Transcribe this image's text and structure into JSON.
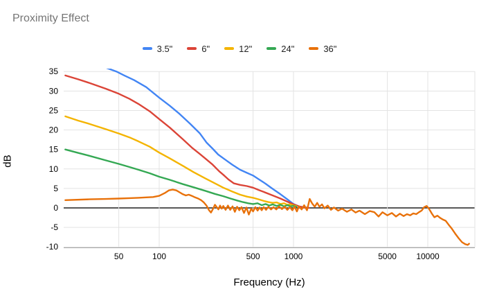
{
  "title": "Proximity Effect",
  "axes": {
    "y_title": "dB",
    "x_title": "Frequency (Hz)",
    "y_ticks": [
      35,
      30,
      25,
      20,
      15,
      10,
      5,
      0,
      -5,
      -10
    ],
    "x_ticks": [
      50,
      100,
      500,
      1000,
      5000,
      10000
    ]
  },
  "styles": {
    "title_color": "#757575",
    "gridline_color": "#e3e3e3",
    "zero_line_color": "#212121",
    "baseline_color": "#9e9e9e",
    "tick_label_color": "#000000"
  },
  "chart_data": {
    "type": "line",
    "title": "Proximity Effect",
    "xlabel": "Frequency (Hz)",
    "ylabel": "dB",
    "x_scale": "log",
    "xlim": [
      19.4,
      22500
    ],
    "ylim": [
      -10,
      35
    ],
    "grid": true,
    "legend_position": "top",
    "series": [
      {
        "name": "3.5\"",
        "color": "#4285F4",
        "points": [
          [
            20,
            40
          ],
          [
            30,
            37.6
          ],
          [
            40,
            36
          ],
          [
            48,
            35
          ],
          [
            55,
            34
          ],
          [
            65,
            32.8
          ],
          [
            80,
            31
          ],
          [
            100,
            28.3
          ],
          [
            120,
            26.2
          ],
          [
            140,
            24.3
          ],
          [
            170,
            21.6
          ],
          [
            200,
            19.2
          ],
          [
            225,
            16.8
          ],
          [
            250,
            15.2
          ],
          [
            275,
            13.7
          ],
          [
            310,
            12.4
          ],
          [
            350,
            11.1
          ],
          [
            400,
            9.8
          ],
          [
            450,
            9.0
          ],
          [
            500,
            8.3
          ],
          [
            560,
            7.2
          ],
          [
            620,
            6.2
          ],
          [
            700,
            4.9
          ],
          [
            800,
            3.5
          ],
          [
            900,
            2.2
          ],
          [
            1000,
            1.0
          ],
          [
            1100,
            0.4
          ],
          [
            1200,
            0.15
          ],
          [
            1300,
            0.05
          ]
        ]
      },
      {
        "name": "6\"",
        "color": "#DB4437",
        "points": [
          [
            20,
            34
          ],
          [
            25,
            33
          ],
          [
            30,
            32.1
          ],
          [
            40,
            30.6
          ],
          [
            50,
            29.3
          ],
          [
            60,
            28
          ],
          [
            70,
            26.7
          ],
          [
            85,
            24.8
          ],
          [
            100,
            22.8
          ],
          [
            120,
            20.6
          ],
          [
            148,
            17.8
          ],
          [
            175,
            15.5
          ],
          [
            200,
            13.9
          ],
          [
            222,
            12.6
          ],
          [
            250,
            11.1
          ],
          [
            280,
            9.4
          ],
          [
            300,
            8.5
          ],
          [
            328,
            7.3
          ],
          [
            360,
            6.3
          ],
          [
            400,
            5.9
          ],
          [
            450,
            5.6
          ],
          [
            500,
            5.2
          ],
          [
            550,
            4.6
          ],
          [
            600,
            4.1
          ],
          [
            700,
            3.2
          ],
          [
            800,
            2.4
          ],
          [
            900,
            1.6
          ],
          [
            1000,
            0.9
          ],
          [
            1100,
            0.4
          ],
          [
            1200,
            0.1
          ],
          [
            1300,
            0
          ]
        ]
      },
      {
        "name": "12\"",
        "color": "#F4B400",
        "points": [
          [
            20,
            23.5
          ],
          [
            25,
            22.4
          ],
          [
            30,
            21.6
          ],
          [
            40,
            20.2
          ],
          [
            50,
            19.1
          ],
          [
            60,
            18.1
          ],
          [
            70,
            17.1
          ],
          [
            85,
            15.7
          ],
          [
            100,
            14.2
          ],
          [
            120,
            12.7
          ],
          [
            150,
            10.8
          ],
          [
            180,
            9.2
          ],
          [
            220,
            7.6
          ],
          [
            260,
            6.3
          ],
          [
            300,
            5.2
          ],
          [
            350,
            4.2
          ],
          [
            400,
            3.4
          ],
          [
            450,
            2.9
          ],
          [
            500,
            2.6
          ],
          [
            550,
            2.2
          ],
          [
            600,
            1.8
          ],
          [
            650,
            1.5
          ],
          [
            700,
            1.3
          ],
          [
            750,
            1.4
          ],
          [
            800,
            1.0
          ],
          [
            850,
            1.2
          ],
          [
            900,
            0.8
          ],
          [
            950,
            0.9
          ],
          [
            1000,
            0.6
          ],
          [
            1050,
            0.5
          ]
        ]
      },
      {
        "name": "24\"",
        "color": "#34A853",
        "points": [
          [
            20,
            15
          ],
          [
            25,
            14.1
          ],
          [
            30,
            13.4
          ],
          [
            40,
            12.2
          ],
          [
            50,
            11.3
          ],
          [
            60,
            10.5
          ],
          [
            70,
            9.8
          ],
          [
            85,
            8.9
          ],
          [
            100,
            8.0
          ],
          [
            120,
            7.2
          ],
          [
            150,
            6.1
          ],
          [
            180,
            5.3
          ],
          [
            220,
            4.4
          ],
          [
            260,
            3.6
          ],
          [
            300,
            3.0
          ],
          [
            340,
            2.4
          ],
          [
            380,
            1.9
          ],
          [
            420,
            1.5
          ],
          [
            460,
            1.2
          ],
          [
            500,
            1.0
          ],
          [
            540,
            1.2
          ],
          [
            580,
            0.7
          ],
          [
            620,
            1.0
          ],
          [
            660,
            0.6
          ],
          [
            700,
            0.9
          ],
          [
            750,
            0.5
          ],
          [
            800,
            0.8
          ],
          [
            850,
            0.4
          ],
          [
            900,
            0.7
          ],
          [
            950,
            0.4
          ],
          [
            1000,
            0.5
          ],
          [
            1050,
            0.3
          ]
        ]
      },
      {
        "name": "36\"",
        "color": "#E8710A",
        "points": [
          [
            20,
            2.0
          ],
          [
            30,
            2.2
          ],
          [
            40,
            2.3
          ],
          [
            50,
            2.4
          ],
          [
            60,
            2.5
          ],
          [
            70,
            2.6
          ],
          [
            80,
            2.7
          ],
          [
            90,
            2.8
          ],
          [
            100,
            3.1
          ],
          [
            110,
            3.8
          ],
          [
            118,
            4.5
          ],
          [
            126,
            4.7
          ],
          [
            134,
            4.5
          ],
          [
            142,
            4.0
          ],
          [
            150,
            3.5
          ],
          [
            158,
            3.2
          ],
          [
            166,
            3.4
          ],
          [
            175,
            3.1
          ],
          [
            185,
            2.7
          ],
          [
            195,
            2.4
          ],
          [
            205,
            2.0
          ],
          [
            215,
            1.4
          ],
          [
            225,
            0.6
          ],
          [
            235,
            -0.6
          ],
          [
            243,
            -1.2
          ],
          [
            252,
            -0.2
          ],
          [
            260,
            0.8
          ],
          [
            268,
            0.2
          ],
          [
            276,
            -0.4
          ],
          [
            284,
            0.6
          ],
          [
            292,
            -0.2
          ],
          [
            300,
            0.5
          ],
          [
            312,
            -0.5
          ],
          [
            325,
            0.6
          ],
          [
            338,
            -0.5
          ],
          [
            352,
            0.4
          ],
          [
            366,
            -1.0
          ],
          [
            380,
            0.3
          ],
          [
            395,
            -0.6
          ],
          [
            410,
            0.2
          ],
          [
            428,
            -1.3
          ],
          [
            446,
            0.1
          ],
          [
            465,
            -1.7
          ],
          [
            485,
            -0.2
          ],
          [
            500,
            -0.9
          ],
          [
            520,
            0.2
          ],
          [
            540,
            -0.7
          ],
          [
            560,
            0.1
          ],
          [
            580,
            -0.6
          ],
          [
            600,
            0.2
          ],
          [
            625,
            -0.5
          ],
          [
            650,
            0.3
          ],
          [
            680,
            -0.4
          ],
          [
            710,
            0.2
          ],
          [
            745,
            -0.4
          ],
          [
            780,
            0.4
          ],
          [
            820,
            -0.3
          ],
          [
            860,
            0.3
          ],
          [
            900,
            -0.5
          ],
          [
            940,
            0.2
          ],
          [
            980,
            -0.6
          ],
          [
            1020,
            0.3
          ],
          [
            1060,
            -0.9
          ],
          [
            1100,
            0.4
          ],
          [
            1150,
            -0.4
          ],
          [
            1200,
            0.7
          ],
          [
            1260,
            -0.6
          ],
          [
            1320,
            2.3
          ],
          [
            1380,
            1.1
          ],
          [
            1440,
            0.3
          ],
          [
            1500,
            1.3
          ],
          [
            1560,
            0.3
          ],
          [
            1630,
            0.9
          ],
          [
            1700,
            -0.1
          ],
          [
            1800,
            0.6
          ],
          [
            1900,
            -0.5
          ],
          [
            2000,
            0.1
          ],
          [
            2150,
            -0.7
          ],
          [
            2300,
            -0.2
          ],
          [
            2500,
            -1.0
          ],
          [
            2700,
            -0.4
          ],
          [
            2900,
            -1.2
          ],
          [
            3100,
            -0.7
          ],
          [
            3400,
            -1.6
          ],
          [
            3700,
            -0.8
          ],
          [
            4000,
            -1.1
          ],
          [
            4300,
            -2.2
          ],
          [
            4600,
            -1.1
          ],
          [
            5000,
            -1.9
          ],
          [
            5400,
            -1.3
          ],
          [
            5800,
            -2.2
          ],
          [
            6200,
            -1.5
          ],
          [
            6600,
            -2.1
          ],
          [
            7000,
            -1.6
          ],
          [
            7400,
            -1.9
          ],
          [
            7800,
            -1.4
          ],
          [
            8200,
            -1.6
          ],
          [
            8600,
            -1.1
          ],
          [
            9000,
            -0.7
          ],
          [
            9400,
            0.2
          ],
          [
            9800,
            0.5
          ],
          [
            10200,
            -0.2
          ],
          [
            10700,
            -1.4
          ],
          [
            11200,
            -2.4
          ],
          [
            11800,
            -2.0
          ],
          [
            12400,
            -2.6
          ],
          [
            13000,
            -3.0
          ],
          [
            13600,
            -3.3
          ],
          [
            14300,
            -4.3
          ],
          [
            15000,
            -5.2
          ],
          [
            16000,
            -6.6
          ],
          [
            17000,
            -7.8
          ],
          [
            18000,
            -8.8
          ],
          [
            19000,
            -9.3
          ],
          [
            19800,
            -9.5
          ],
          [
            20300,
            -9.2
          ]
        ]
      }
    ]
  }
}
